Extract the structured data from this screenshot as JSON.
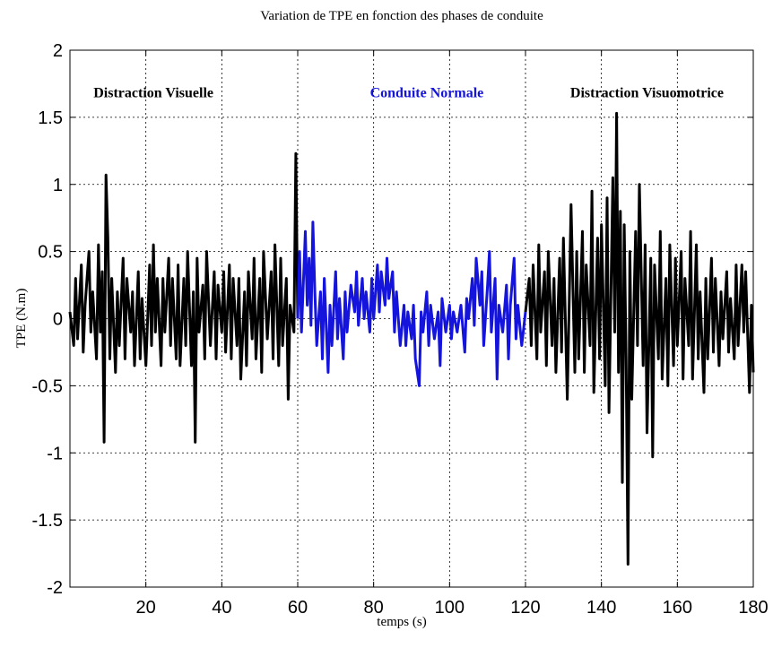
{
  "chart_data": {
    "type": "line",
    "title": "Variation de TPE en fonction des phases de conduite",
    "xlabel": "temps (s)",
    "ylabel": "TPE (N.m)",
    "xlim": [
      0,
      180
    ],
    "ylim": [
      -2,
      2
    ],
    "xticks": [
      20,
      40,
      60,
      80,
      100,
      120,
      140,
      160,
      180
    ],
    "yticks": [
      2,
      1.5,
      1,
      0.5,
      0,
      -0.5,
      -1,
      -1.5,
      -2
    ],
    "grid": true,
    "annotations": [
      {
        "text": "Distraction Visuelle",
        "x": 22,
        "y": 1.65,
        "color": "#000000"
      },
      {
        "text": "Conduite Normale",
        "x": 94,
        "y": 1.65,
        "color": "#1414dc"
      },
      {
        "text": "Distraction Visuomotrice",
        "x": 152,
        "y": 1.65,
        "color": "#000000"
      }
    ],
    "series": [
      {
        "color": "#000000",
        "points": [
          [
            0,
            0.05
          ],
          [
            1,
            -0.2
          ],
          [
            1.5,
            0.3
          ],
          [
            2,
            -0.15
          ],
          [
            3,
            0.4
          ],
          [
            3.5,
            -0.25
          ],
          [
            4,
            0.1
          ],
          [
            5,
            0.5
          ],
          [
            5.5,
            -0.1
          ],
          [
            6,
            0.2
          ],
          [
            7,
            -0.3
          ],
          [
            7.5,
            0.55
          ],
          [
            8,
            -0.1
          ],
          [
            8.5,
            0.35
          ],
          [
            9,
            -0.92
          ],
          [
            9.5,
            1.07
          ],
          [
            10,
            0.6
          ],
          [
            10.5,
            -0.3
          ],
          [
            11,
            0.3
          ],
          [
            12,
            -0.4
          ],
          [
            12.5,
            0.2
          ],
          [
            13,
            -0.2
          ],
          [
            14,
            0.45
          ],
          [
            14.5,
            -0.3
          ],
          [
            15,
            0.3
          ],
          [
            16,
            -0.1
          ],
          [
            16.5,
            0.2
          ],
          [
            17,
            -0.35
          ],
          [
            18,
            0.35
          ],
          [
            18.5,
            -0.3
          ],
          [
            19,
            0.15
          ],
          [
            20,
            -0.35
          ],
          [
            21,
            0.4
          ],
          [
            21.5,
            -0.2
          ],
          [
            22,
            0.55
          ],
          [
            22.5,
            -0.1
          ],
          [
            23,
            0.3
          ],
          [
            24,
            -0.35
          ],
          [
            24.5,
            0.3
          ],
          [
            25,
            -0.1
          ],
          [
            26,
            0.45
          ],
          [
            26.5,
            -0.2
          ],
          [
            27,
            0.3
          ],
          [
            28,
            -0.3
          ],
          [
            28.5,
            0.4
          ],
          [
            29,
            -0.35
          ],
          [
            30,
            0.3
          ],
          [
            30.5,
            -0.2
          ],
          [
            31,
            0.5
          ],
          [
            32,
            -0.35
          ],
          [
            32.5,
            0.2
          ],
          [
            33,
            -0.92
          ],
          [
            33.5,
            0.45
          ],
          [
            34,
            -0.1
          ],
          [
            35,
            0.25
          ],
          [
            35.5,
            -0.3
          ],
          [
            36,
            0.5
          ],
          [
            37,
            -0.2
          ],
          [
            38,
            0.35
          ],
          [
            38.5,
            -0.3
          ],
          [
            39,
            0.25
          ],
          [
            40,
            -0.1
          ],
          [
            40.5,
            0.35
          ],
          [
            41,
            -0.25
          ],
          [
            42,
            0.4
          ],
          [
            42.5,
            -0.3
          ],
          [
            43,
            0.3
          ],
          [
            44,
            -0.2
          ],
          [
            44.5,
            0.3
          ],
          [
            45,
            -0.45
          ],
          [
            46,
            0.2
          ],
          [
            46.5,
            -0.35
          ],
          [
            47,
            0.35
          ],
          [
            48,
            -0.15
          ],
          [
            48.5,
            0.45
          ],
          [
            49,
            -0.3
          ],
          [
            50,
            0.3
          ],
          [
            50.5,
            -0.4
          ],
          [
            51,
            0.5
          ],
          [
            52,
            -0.15
          ],
          [
            53,
            0.35
          ],
          [
            53.5,
            -0.3
          ],
          [
            54,
            0.55
          ],
          [
            55,
            -0.35
          ],
          [
            55.5,
            0.45
          ],
          [
            56,
            -0.2
          ],
          [
            57,
            0.3
          ],
          [
            57.5,
            -0.6
          ],
          [
            58,
            0.1
          ],
          [
            59,
            -0.1
          ],
          [
            59.5,
            1.23
          ],
          [
            60,
            0.0
          ]
        ]
      },
      {
        "color": "#1414dc",
        "points": [
          [
            60,
            0.0
          ],
          [
            60.5,
            0.5
          ],
          [
            61,
            -0.1
          ],
          [
            62,
            0.65
          ],
          [
            62.5,
            0.1
          ],
          [
            63,
            0.45
          ],
          [
            63.5,
            -0.05
          ],
          [
            64,
            0.72
          ],
          [
            64.5,
            0.2
          ],
          [
            65,
            -0.2
          ],
          [
            66,
            0.2
          ],
          [
            66.5,
            -0.3
          ],
          [
            67,
            0.3
          ],
          [
            68,
            -0.4
          ],
          [
            68.5,
            0.1
          ],
          [
            69,
            -0.2
          ],
          [
            70,
            0.35
          ],
          [
            70.5,
            -0.15
          ],
          [
            71,
            0.15
          ],
          [
            72,
            -0.3
          ],
          [
            72.5,
            0.2
          ],
          [
            73,
            -0.1
          ],
          [
            74,
            0.25
          ],
          [
            75,
            0.05
          ],
          [
            75.5,
            0.35
          ],
          [
            76,
            -0.05
          ],
          [
            77,
            0.3
          ],
          [
            77.5,
            0.0
          ],
          [
            78,
            0.2
          ],
          [
            79,
            -0.1
          ],
          [
            79.5,
            0.3
          ],
          [
            80,
            0.0
          ],
          [
            81,
            0.4
          ],
          [
            81.5,
            0.05
          ],
          [
            82,
            0.35
          ],
          [
            83,
            0.1
          ],
          [
            83.5,
            0.45
          ],
          [
            84,
            0.15
          ],
          [
            85,
            0.35
          ],
          [
            85.5,
            -0.1
          ],
          [
            86,
            0.2
          ],
          [
            87,
            -0.2
          ],
          [
            88,
            0.1
          ],
          [
            88.5,
            -0.2
          ],
          [
            89,
            0.05
          ],
          [
            90,
            -0.15
          ],
          [
            90.5,
            0.1
          ],
          [
            91,
            -0.3
          ],
          [
            92,
            -0.5
          ],
          [
            92.5,
            0.05
          ],
          [
            93,
            -0.1
          ],
          [
            94,
            0.2
          ],
          [
            94.5,
            -0.2
          ],
          [
            95,
            0.1
          ],
          [
            96,
            -0.15
          ],
          [
            97,
            0.05
          ],
          [
            97.5,
            -0.35
          ],
          [
            98,
            0.15
          ],
          [
            99,
            -0.1
          ],
          [
            100,
            0.1
          ],
          [
            100.5,
            -0.15
          ],
          [
            101,
            0.05
          ],
          [
            102,
            -0.1
          ],
          [
            103,
            0.1
          ],
          [
            104,
            -0.25
          ],
          [
            104.5,
            0.15
          ],
          [
            105,
            0.0
          ],
          [
            106,
            0.3
          ],
          [
            106.5,
            -0.05
          ],
          [
            107,
            0.45
          ],
          [
            108,
            0.1
          ],
          [
            108.5,
            0.35
          ],
          [
            109,
            -0.2
          ],
          [
            110,
            0.25
          ],
          [
            110.5,
            0.5
          ],
          [
            111,
            -0.1
          ],
          [
            112,
            0.3
          ],
          [
            112.5,
            -0.45
          ],
          [
            113,
            0.1
          ],
          [
            114,
            -0.1
          ],
          [
            115,
            0.25
          ],
          [
            115.5,
            -0.3
          ],
          [
            116,
            0.1
          ],
          [
            117,
            0.45
          ],
          [
            117.5,
            -0.15
          ],
          [
            118,
            0.1
          ],
          [
            119,
            -0.2
          ],
          [
            120,
            0.05
          ]
        ]
      },
      {
        "color": "#000000",
        "points": [
          [
            120,
            0.05
          ],
          [
            121,
            0.3
          ],
          [
            121.5,
            -0.2
          ],
          [
            122,
            0.4
          ],
          [
            123,
            -0.3
          ],
          [
            123.5,
            0.55
          ],
          [
            124,
            -0.1
          ],
          [
            125,
            0.35
          ],
          [
            125.5,
            -0.35
          ],
          [
            126,
            0.5
          ],
          [
            127,
            -0.2
          ],
          [
            127.5,
            0.3
          ],
          [
            128,
            -0.4
          ],
          [
            129,
            0.45
          ],
          [
            129.5,
            -0.25
          ],
          [
            130,
            0.6
          ],
          [
            131,
            -0.6
          ],
          [
            131.5,
            0.1
          ],
          [
            132,
            0.85
          ],
          [
            133,
            -0.4
          ],
          [
            133.5,
            0.5
          ],
          [
            134,
            -0.3
          ],
          [
            135,
            0.65
          ],
          [
            135.5,
            -0.4
          ],
          [
            136,
            0.4
          ],
          [
            137,
            -0.2
          ],
          [
            137.5,
            0.95
          ],
          [
            138,
            -0.55
          ],
          [
            139,
            0.6
          ],
          [
            139.5,
            -0.3
          ],
          [
            140,
            0.7
          ],
          [
            141,
            -0.5
          ],
          [
            141.5,
            0.9
          ],
          [
            142,
            -0.7
          ],
          [
            143,
            1.05
          ],
          [
            143.5,
            -0.1
          ],
          [
            144,
            1.53
          ],
          [
            144.5,
            -0.4
          ],
          [
            145,
            0.8
          ],
          [
            145.5,
            -1.22
          ],
          [
            146,
            0.7
          ],
          [
            146.5,
            -0.3
          ],
          [
            147,
            -1.83
          ],
          [
            147.5,
            0.5
          ],
          [
            148,
            -0.6
          ],
          [
            149,
            0.65
          ],
          [
            149.5,
            -0.2
          ],
          [
            150,
            1.0
          ],
          [
            151,
            -0.35
          ],
          [
            151.5,
            0.55
          ],
          [
            152,
            -0.85
          ],
          [
            153,
            0.45
          ],
          [
            153.5,
            -1.03
          ],
          [
            154,
            0.4
          ],
          [
            155,
            -0.3
          ],
          [
            155.5,
            0.65
          ],
          [
            156,
            -0.45
          ],
          [
            157,
            0.3
          ],
          [
            157.5,
            -0.5
          ],
          [
            158,
            0.55
          ],
          [
            159,
            -0.35
          ],
          [
            159.5,
            0.45
          ],
          [
            160,
            -0.2
          ],
          [
            161,
            0.5
          ],
          [
            161.5,
            -0.45
          ],
          [
            162,
            0.3
          ],
          [
            163,
            -0.2
          ],
          [
            163.5,
            0.65
          ],
          [
            164,
            -0.45
          ],
          [
            165,
            0.55
          ],
          [
            165.5,
            -0.3
          ],
          [
            166,
            0.2
          ],
          [
            167,
            -0.55
          ],
          [
            167.5,
            0.3
          ],
          [
            168,
            -0.3
          ],
          [
            169,
            0.45
          ],
          [
            169.5,
            -0.25
          ],
          [
            170,
            0.3
          ],
          [
            171,
            -0.35
          ],
          [
            171.5,
            0.2
          ],
          [
            172,
            -0.15
          ],
          [
            173,
            0.35
          ],
          [
            173.5,
            -0.25
          ],
          [
            174,
            0.15
          ],
          [
            175,
            -0.3
          ],
          [
            175.5,
            0.4
          ],
          [
            176,
            -0.2
          ],
          [
            177,
            0.4
          ],
          [
            177.5,
            -0.1
          ],
          [
            178,
            0.35
          ],
          [
            179,
            -0.55
          ],
          [
            179.5,
            0.1
          ],
          [
            180,
            -0.4
          ]
        ]
      }
    ]
  }
}
